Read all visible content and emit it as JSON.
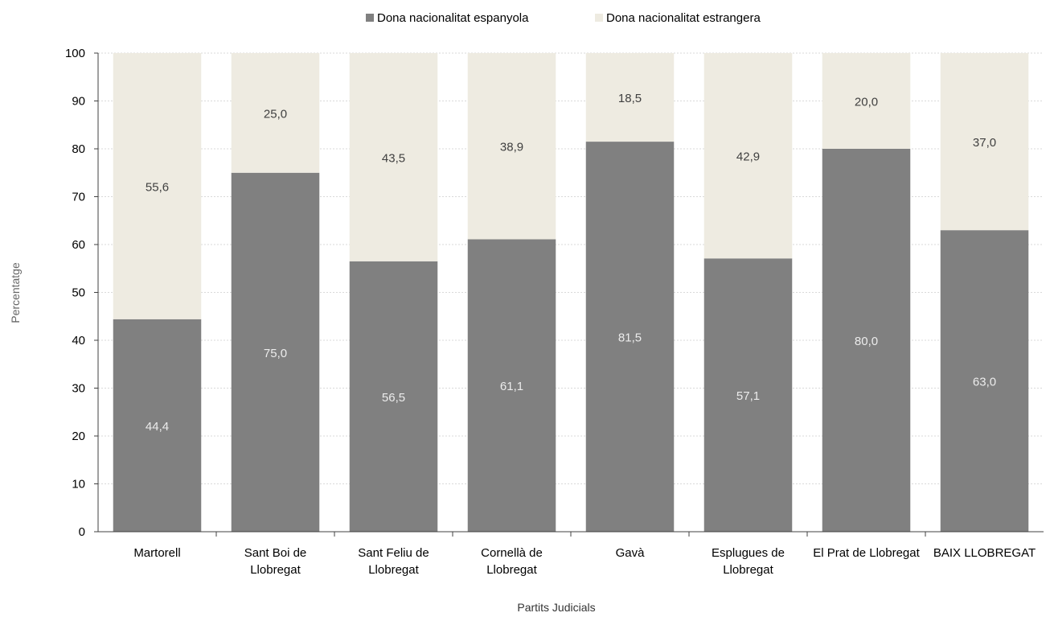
{
  "chart_data": {
    "type": "bar",
    "stacked": true,
    "title": "",
    "xlabel": "Partits Judicials",
    "ylabel": "Percentatge",
    "ylim": [
      0,
      100
    ],
    "yticks": [
      "0",
      "10",
      "20",
      "30",
      "40",
      "50",
      "60",
      "70",
      "80",
      "90",
      "100"
    ],
    "grid": true,
    "legend_position": "top",
    "categories": [
      [
        "Martorell"
      ],
      [
        "Sant Boi de",
        "Llobregat"
      ],
      [
        "Sant Feliu de",
        "Llobregat"
      ],
      [
        "Cornellà de",
        "Llobregat"
      ],
      [
        "Gavà"
      ],
      [
        "Esplugues de",
        "Llobregat"
      ],
      [
        "El Prat de Llobregat"
      ],
      [
        "BAIX LLOBREGAT"
      ]
    ],
    "series": [
      {
        "name": "Dona nacionalitat espanyola",
        "color": "#808080",
        "label_color": "#ececec",
        "values": [
          44.4,
          75.0,
          56.5,
          61.1,
          81.5,
          57.1,
          80.0,
          63.0
        ],
        "labels": [
          "44,4",
          "75,0",
          "56,5",
          "61,1",
          "81,5",
          "57,1",
          "80,0",
          "63,0"
        ]
      },
      {
        "name": "Dona nacionalitat estrangera",
        "color": "#eeebe1",
        "label_color": "#404040",
        "values": [
          55.6,
          25.0,
          43.5,
          38.9,
          18.5,
          42.9,
          20.0,
          37.0
        ],
        "labels": [
          "55,6",
          "25,0",
          "43,5",
          "38,9",
          "18,5",
          "42,9",
          "20,0",
          "37,0"
        ]
      }
    ]
  }
}
